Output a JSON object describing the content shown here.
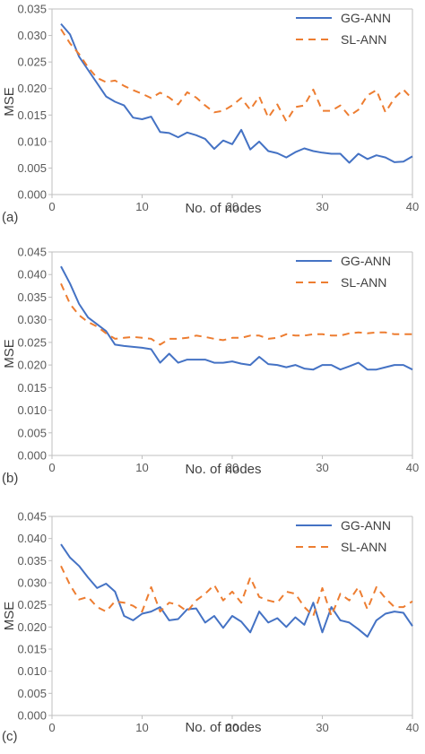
{
  "colors": {
    "gg": "#4472C4",
    "sl": "#ED7D31",
    "axis": "#BFBFBF",
    "text": "#404040"
  },
  "chart_data": [
    {
      "type": "line",
      "panel_label": "(a)",
      "xlabel": "No. of nodes",
      "ylabel": "MSE",
      "xlim": [
        0,
        40
      ],
      "ylim": [
        0,
        0.035
      ],
      "xticks": [
        "0",
        "10",
        "20",
        "30",
        "40"
      ],
      "yticks": [
        "0.000",
        "0.005",
        "0.010",
        "0.015",
        "0.020",
        "0.025",
        "0.030",
        "0.035"
      ],
      "legend_position": "top-right",
      "x": [
        1,
        2,
        3,
        4,
        5,
        6,
        7,
        8,
        9,
        10,
        11,
        12,
        13,
        14,
        15,
        16,
        17,
        18,
        19,
        20,
        21,
        22,
        23,
        24,
        25,
        26,
        27,
        28,
        29,
        30,
        31,
        32,
        33,
        34,
        35,
        36,
        37,
        38,
        39,
        40
      ],
      "series": [
        {
          "name": "GG-ANN",
          "style": "solid",
          "values": [
            0.0322,
            0.0302,
            0.026,
            0.0235,
            0.021,
            0.0185,
            0.0175,
            0.0168,
            0.0145,
            0.0142,
            0.0147,
            0.0118,
            0.0116,
            0.0108,
            0.0117,
            0.0112,
            0.0105,
            0.0086,
            0.0102,
            0.0095,
            0.0122,
            0.0085,
            0.01,
            0.0082,
            0.0078,
            0.007,
            0.008,
            0.0087,
            0.0082,
            0.0079,
            0.0077,
            0.0077,
            0.006,
            0.0077,
            0.0067,
            0.0074,
            0.007,
            0.0061,
            0.0062,
            0.0072
          ]
        },
        {
          "name": "SL-ANN",
          "style": "dashed",
          "values": [
            0.0312,
            0.0285,
            0.0265,
            0.024,
            0.022,
            0.0212,
            0.0215,
            0.0205,
            0.0197,
            0.019,
            0.0182,
            0.0192,
            0.0183,
            0.017,
            0.0193,
            0.0183,
            0.0168,
            0.0155,
            0.0158,
            0.0168,
            0.0182,
            0.016,
            0.0185,
            0.0145,
            0.017,
            0.0138,
            0.0165,
            0.0168,
            0.0198,
            0.0158,
            0.0158,
            0.0168,
            0.0148,
            0.016,
            0.0187,
            0.0197,
            0.0155,
            0.0182,
            0.0198,
            0.018
          ]
        }
      ]
    },
    {
      "type": "line",
      "panel_label": "(b)",
      "xlabel": "No. of nodes",
      "ylabel": "MSE",
      "xlim": [
        0,
        40
      ],
      "ylim": [
        0,
        0.045
      ],
      "xticks": [
        "0",
        "10",
        "20",
        "30",
        "40"
      ],
      "yticks": [
        "0.000",
        "0.005",
        "0.010",
        "0.015",
        "0.020",
        "0.025",
        "0.030",
        "0.035",
        "0.040",
        "0.045"
      ],
      "legend_position": "top-right",
      "x": [
        1,
        2,
        3,
        4,
        5,
        6,
        7,
        8,
        9,
        10,
        11,
        12,
        13,
        14,
        15,
        16,
        17,
        18,
        19,
        20,
        21,
        22,
        23,
        24,
        25,
        26,
        27,
        28,
        29,
        30,
        31,
        32,
        33,
        34,
        35,
        36,
        37,
        38,
        39,
        40
      ],
      "series": [
        {
          "name": "GG-ANN",
          "style": "solid",
          "values": [
            0.0418,
            0.038,
            0.0335,
            0.0305,
            0.029,
            0.0275,
            0.0245,
            0.0242,
            0.024,
            0.0238,
            0.0235,
            0.0205,
            0.0225,
            0.0205,
            0.0212,
            0.0212,
            0.0212,
            0.0205,
            0.0205,
            0.0208,
            0.0203,
            0.02,
            0.0218,
            0.0202,
            0.02,
            0.0195,
            0.02,
            0.0192,
            0.019,
            0.02,
            0.02,
            0.019,
            0.0197,
            0.0205,
            0.019,
            0.019,
            0.0195,
            0.02,
            0.02,
            0.019
          ]
        },
        {
          "name": "SL-ANN",
          "style": "dashed",
          "values": [
            0.038,
            0.0335,
            0.031,
            0.0295,
            0.0285,
            0.027,
            0.0258,
            0.026,
            0.0262,
            0.026,
            0.0258,
            0.0245,
            0.0258,
            0.0258,
            0.026,
            0.0265,
            0.0262,
            0.0258,
            0.0255,
            0.026,
            0.026,
            0.0265,
            0.0265,
            0.0258,
            0.026,
            0.0268,
            0.0265,
            0.0265,
            0.0268,
            0.0268,
            0.0265,
            0.0265,
            0.027,
            0.0272,
            0.027,
            0.0272,
            0.0272,
            0.0268,
            0.0268,
            0.0268
          ]
        }
      ]
    },
    {
      "type": "line",
      "panel_label": "(c)",
      "xlabel": "No. of nodes",
      "ylabel": "MSE",
      "xlim": [
        0,
        40
      ],
      "ylim": [
        0,
        0.045
      ],
      "xticks": [
        "0",
        "10",
        "20",
        "30",
        "40"
      ],
      "yticks": [
        "0.000",
        "0.005",
        "0.010",
        "0.015",
        "0.020",
        "0.025",
        "0.030",
        "0.035",
        "0.040",
        "0.045"
      ],
      "legend_position": "top-right",
      "x": [
        1,
        2,
        3,
        4,
        5,
        6,
        7,
        8,
        9,
        10,
        11,
        12,
        13,
        14,
        15,
        16,
        17,
        18,
        19,
        20,
        21,
        22,
        23,
        24,
        25,
        26,
        27,
        28,
        29,
        30,
        31,
        32,
        33,
        34,
        35,
        36,
        37,
        38,
        39,
        40
      ],
      "series": [
        {
          "name": "GG-ANN",
          "style": "solid",
          "values": [
            0.0387,
            0.0357,
            0.0338,
            0.0312,
            0.0288,
            0.0298,
            0.028,
            0.0225,
            0.0215,
            0.023,
            0.0235,
            0.0245,
            0.0215,
            0.0218,
            0.024,
            0.0242,
            0.021,
            0.0225,
            0.0198,
            0.0225,
            0.0212,
            0.0188,
            0.0235,
            0.021,
            0.022,
            0.02,
            0.0222,
            0.0205,
            0.0255,
            0.0188,
            0.0245,
            0.0215,
            0.021,
            0.0195,
            0.0178,
            0.0215,
            0.023,
            0.0235,
            0.0232,
            0.0202
          ]
        },
        {
          "name": "SL-ANN",
          "style": "dashed",
          "values": [
            0.0338,
            0.0295,
            0.0262,
            0.0268,
            0.0245,
            0.0235,
            0.0258,
            0.0255,
            0.0248,
            0.0235,
            0.029,
            0.0235,
            0.0255,
            0.025,
            0.0235,
            0.026,
            0.0275,
            0.0295,
            0.026,
            0.028,
            0.0255,
            0.0312,
            0.0268,
            0.026,
            0.0255,
            0.028,
            0.0275,
            0.0245,
            0.0225,
            0.0288,
            0.0225,
            0.0275,
            0.026,
            0.029,
            0.024,
            0.029,
            0.0265,
            0.0245,
            0.0245,
            0.0258
          ]
        }
      ]
    }
  ]
}
